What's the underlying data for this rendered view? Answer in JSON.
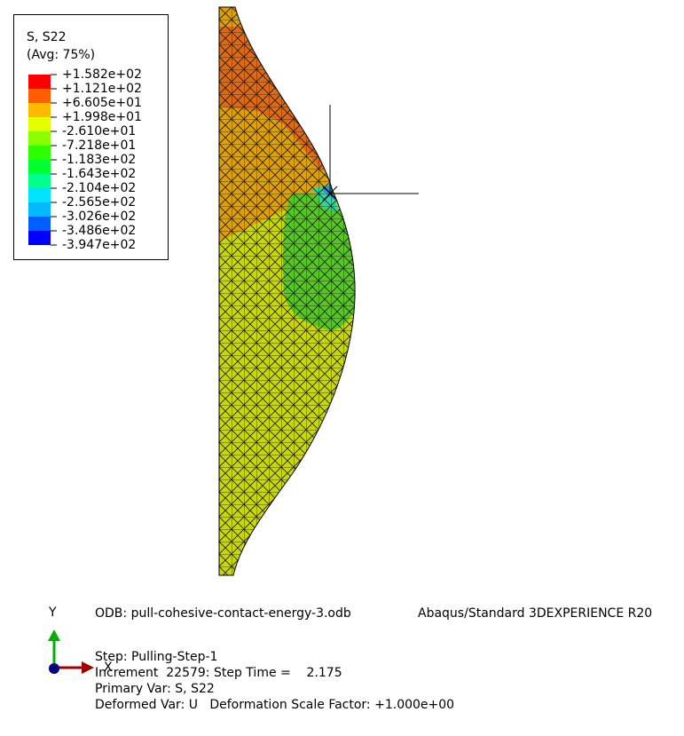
{
  "legend": {
    "title": "S, S22",
    "subtitle": "(Avg: 75%)",
    "labels": [
      "+1.582e+02",
      "+1.121e+02",
      "+6.605e+01",
      "+1.998e+01",
      "-2.610e+01",
      "-7.218e+01",
      "-1.183e+02",
      "-1.643e+02",
      "-2.104e+02",
      "-2.565e+02",
      "-3.026e+02",
      "-3.486e+02",
      "-3.947e+02"
    ],
    "colors": [
      "#ff0000",
      "#ff5d00",
      "#ffb900",
      "#e3ff00",
      "#8bff00",
      "#2eff00",
      "#00ff2e",
      "#00ff8b",
      "#00e3ff",
      "#00b9ff",
      "#005dff",
      "#0000ff"
    ]
  },
  "triad": {
    "y": "Y",
    "x": "X"
  },
  "info": {
    "odb": "ODB: pull-cohesive-contact-energy-3.odb",
    "solver": "Abaqus/Standard 3DEXPERIENCE R20",
    "step": "Step: Pulling-Step-1",
    "increment": "Increment  22579: Step Time =    2.175",
    "primary": "Primary Var: S, S22",
    "deformed": "Deformed Var: U   Deformation Scale Factor: +1.000e+00"
  }
}
